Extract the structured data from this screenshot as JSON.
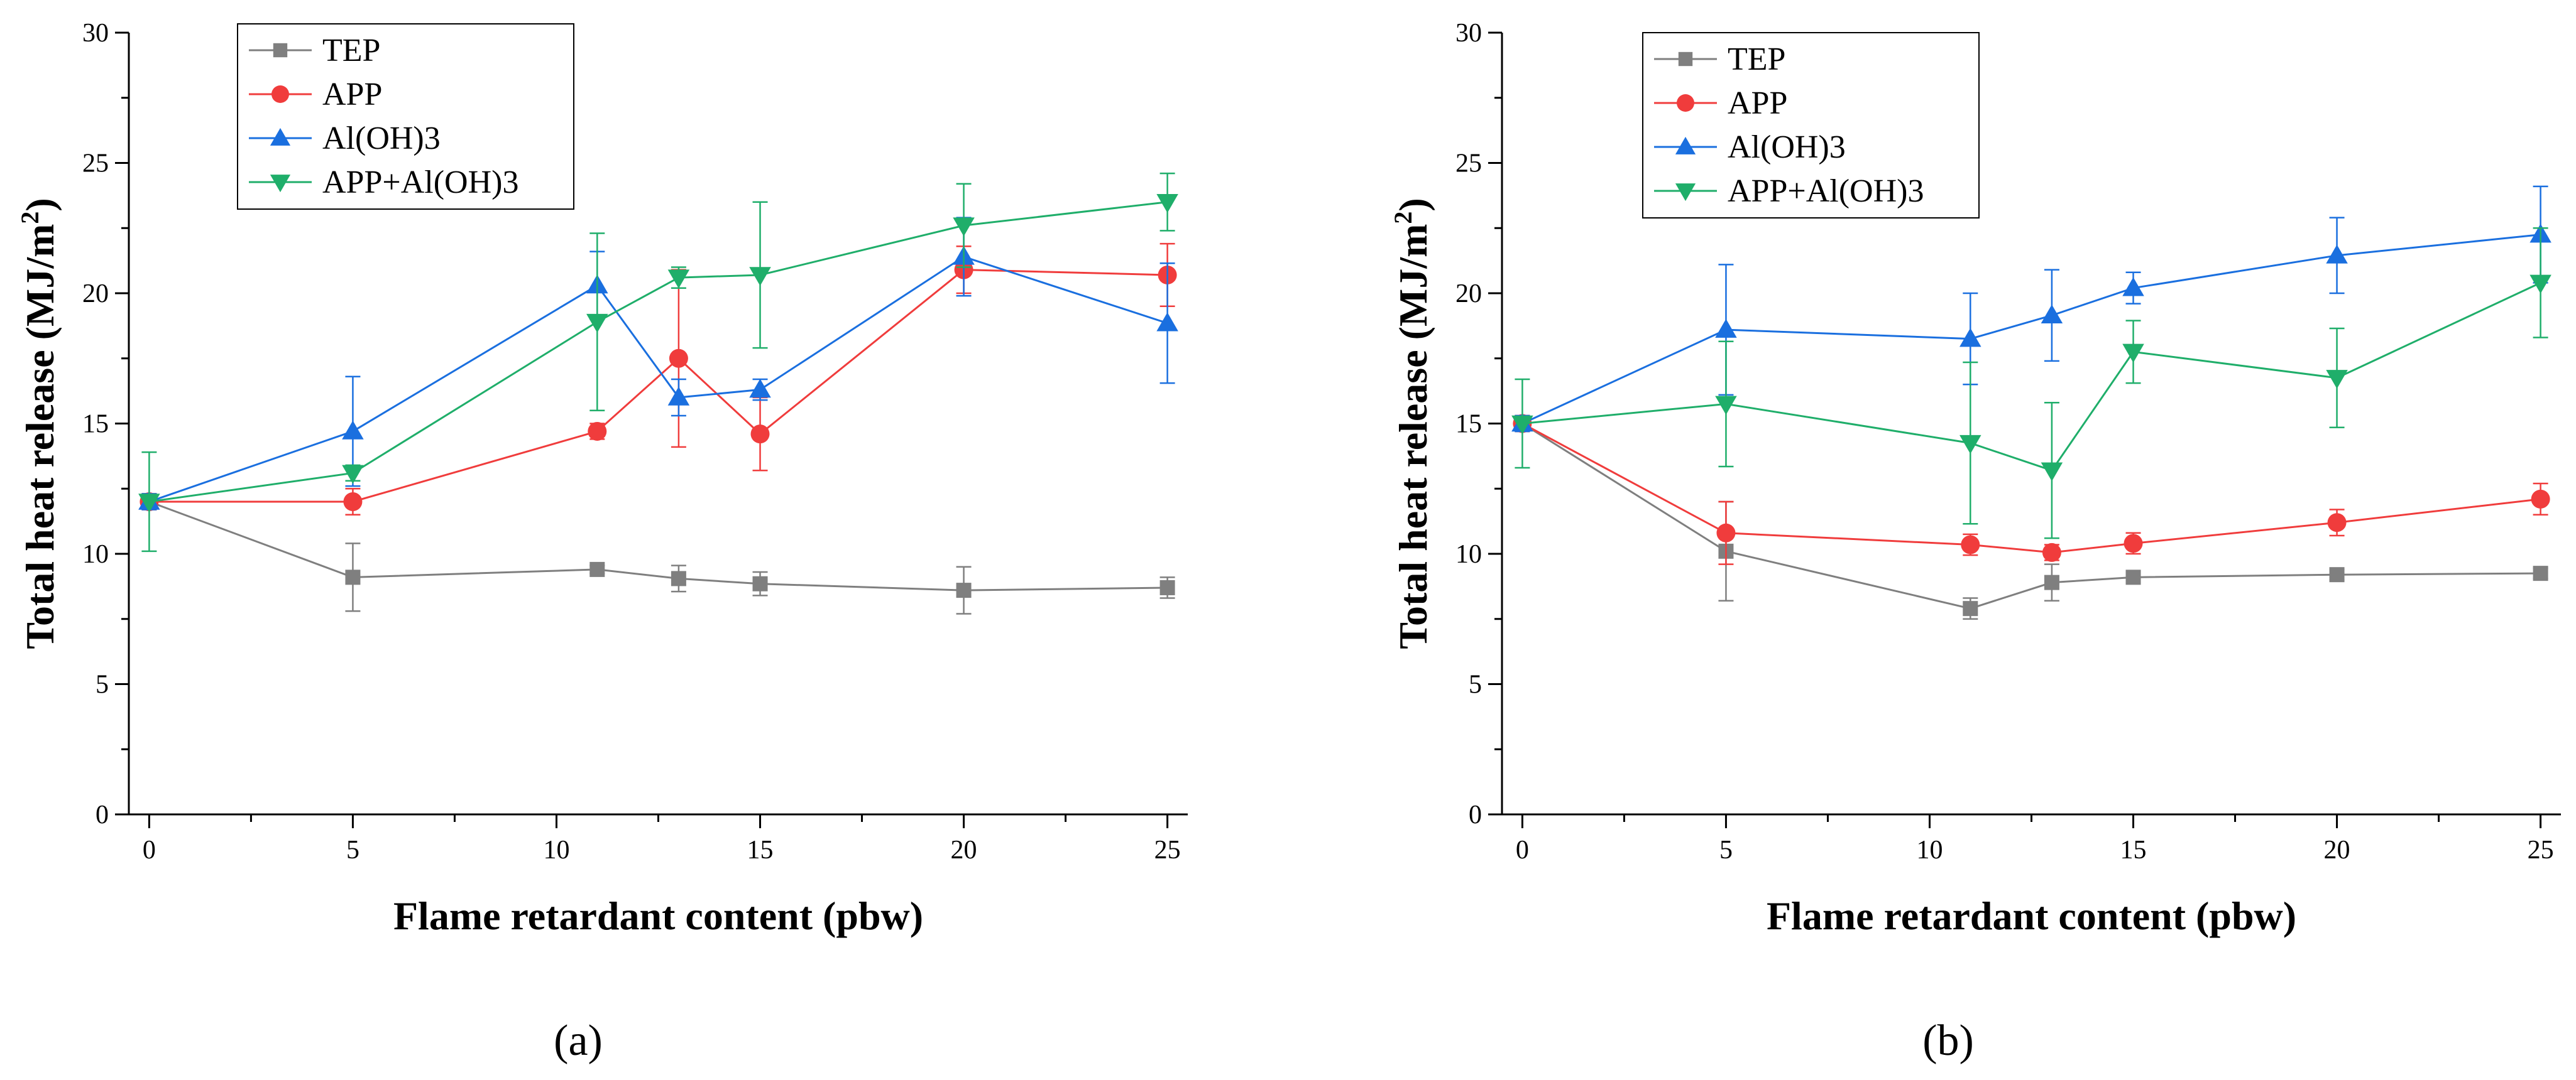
{
  "chart_data": [
    {
      "type": "line",
      "panel_label": "(a)",
      "xlabel": "Flame retardant content (pbw)",
      "ylabel": "Total heat release (MJ/m2)",
      "ylabel_main": "Total heat release (MJ/m",
      "ylabel_sup": "2",
      "ylabel_end": ")",
      "xlim": [
        -0.5,
        25.5
      ],
      "ylim": [
        0,
        30
      ],
      "xticks": [
        "0",
        "5",
        "10",
        "15",
        "20",
        "25"
      ],
      "yticks": [
        "0",
        "5",
        "10",
        "15",
        "20",
        "25",
        "30"
      ],
      "legend_position": "top-left",
      "x": [
        0,
        5,
        11,
        13,
        15,
        20,
        25
      ],
      "series": [
        {
          "name": "TEP",
          "color": "#7f7f7f",
          "marker": "square",
          "values": [
            12.0,
            9.1,
            9.4,
            9.05,
            8.85,
            8.6,
            8.7
          ],
          "errors": [
            0.3,
            1.3,
            0.15,
            0.5,
            0.45,
            0.9,
            0.4
          ]
        },
        {
          "name": "APP",
          "color": "#f03c3c",
          "marker": "circle",
          "values": [
            12.0,
            12.0,
            14.7,
            17.5,
            14.6,
            20.9,
            20.7
          ],
          "errors": [
            0.3,
            0.5,
            0.3,
            3.4,
            1.4,
            0.9,
            1.2
          ]
        },
        {
          "name": "Al(OH)3",
          "color": "#1a6fdf",
          "marker": "triangle-up",
          "values": [
            12.0,
            14.7,
            20.3,
            16.0,
            16.3,
            21.4,
            18.85
          ],
          "errors": [
            0.3,
            2.1,
            1.3,
            0.7,
            0.4,
            1.5,
            2.3
          ]
        },
        {
          "name": "APP+Al(OH)3",
          "color": "#1fae6a",
          "marker": "triangle-down",
          "values": [
            12.0,
            13.1,
            18.9,
            20.6,
            20.7,
            22.6,
            23.5
          ],
          "errors": [
            1.9,
            0.3,
            3.4,
            0.4,
            2.8,
            1.6,
            1.1
          ]
        }
      ]
    },
    {
      "type": "line",
      "panel_label": "(b)",
      "xlabel": "Flame retardant content (pbw)",
      "ylabel": "Total heat release (MJ/m2)",
      "ylabel_main": "Total heat release (MJ/m",
      "ylabel_sup": "2",
      "ylabel_end": ")",
      "xlim": [
        -0.5,
        25.5
      ],
      "ylim": [
        0,
        30
      ],
      "xticks": [
        "0",
        "5",
        "10",
        "15",
        "20",
        "25"
      ],
      "yticks": [
        "0",
        "5",
        "10",
        "15",
        "20",
        "25",
        "30"
      ],
      "legend_position": "top-left",
      "x": [
        0,
        5,
        11,
        13,
        15,
        20,
        25
      ],
      "series": [
        {
          "name": "TEP",
          "color": "#7f7f7f",
          "marker": "square",
          "values": [
            15.0,
            10.1,
            7.9,
            8.9,
            9.1,
            9.2,
            9.25
          ],
          "errors": [
            0.3,
            1.9,
            0.4,
            0.7,
            0.2,
            0.2,
            0.2
          ]
        },
        {
          "name": "APP",
          "color": "#f03c3c",
          "marker": "circle",
          "values": [
            15.0,
            10.8,
            10.35,
            10.05,
            10.4,
            11.2,
            12.1
          ],
          "errors": [
            0.3,
            1.2,
            0.4,
            0.3,
            0.4,
            0.5,
            0.6
          ]
        },
        {
          "name": "Al(OH)3",
          "color": "#1a6fdf",
          "marker": "triangle-up",
          "values": [
            15.0,
            18.6,
            18.25,
            19.15,
            20.2,
            21.45,
            22.25
          ],
          "errors": [
            0.3,
            2.5,
            1.75,
            1.75,
            0.6,
            1.45,
            1.85
          ]
        },
        {
          "name": "APP+Al(OH)3",
          "color": "#1fae6a",
          "marker": "triangle-down",
          "values": [
            15.0,
            15.75,
            14.25,
            13.2,
            17.75,
            16.75,
            20.4
          ],
          "errors": [
            1.7,
            2.4,
            3.1,
            2.6,
            1.2,
            1.9,
            2.1
          ]
        }
      ]
    }
  ]
}
